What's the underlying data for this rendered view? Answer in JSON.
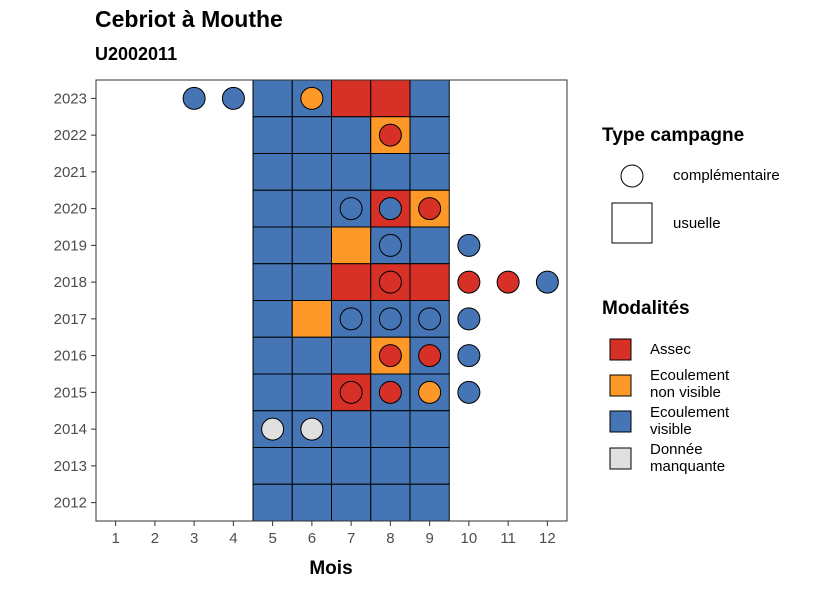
{
  "title": "Cebriot à Mouthe",
  "subtitle": "U2002011",
  "colors": {
    "Assec": "#d73027",
    "Ecoulement non visible": "#fe9929",
    "Ecoulement visible": "#4575b4",
    "Donnée manquante": "#e0e0e0"
  },
  "legend_type": {
    "title": "Type campagne",
    "items": [
      {
        "label": "complémentaire",
        "shape": "circle"
      },
      {
        "label": "usuelle",
        "shape": "square"
      }
    ]
  },
  "legend_modalites": {
    "title": "Modalités",
    "items": [
      {
        "key": "Assec",
        "label": "Assec"
      },
      {
        "key": "Ecoulement non visible",
        "label": "Ecoulement\nnon visible"
      },
      {
        "key": "Ecoulement visible",
        "label": "Ecoulement\nvisible"
      },
      {
        "key": "Donnée manquante",
        "label": "Donnée\nmanquante"
      }
    ]
  },
  "chart_data": {
    "type": "heatmap",
    "title": "Cebriot à Mouthe",
    "subtitle": "U2002011",
    "xlabel": "Mois",
    "ylabel": "",
    "x_ticks": [
      1,
      2,
      3,
      4,
      5,
      6,
      7,
      8,
      9,
      10,
      11,
      12
    ],
    "y_ticks": [
      2012,
      2013,
      2014,
      2015,
      2016,
      2017,
      2018,
      2019,
      2020,
      2021,
      2022,
      2023
    ],
    "xlim": [
      0.5,
      12.5
    ],
    "ylim": [
      2011.5,
      2023.5
    ],
    "usuelle": [
      {
        "year": 2023,
        "values": {
          "5": "Ecoulement visible",
          "6": "Ecoulement visible",
          "7": "Assec",
          "8": "Assec",
          "9": "Ecoulement visible"
        }
      },
      {
        "year": 2022,
        "values": {
          "5": "Ecoulement visible",
          "6": "Ecoulement visible",
          "7": "Ecoulement visible",
          "8": "Ecoulement non visible",
          "9": "Ecoulement visible"
        }
      },
      {
        "year": 2021,
        "values": {
          "5": "Ecoulement visible",
          "6": "Ecoulement visible",
          "7": "Ecoulement visible",
          "8": "Ecoulement visible",
          "9": "Ecoulement visible"
        }
      },
      {
        "year": 2020,
        "values": {
          "5": "Ecoulement visible",
          "6": "Ecoulement visible",
          "7": "Ecoulement visible",
          "8": "Assec",
          "9": "Ecoulement non visible"
        }
      },
      {
        "year": 2019,
        "values": {
          "5": "Ecoulement visible",
          "6": "Ecoulement visible",
          "7": "Ecoulement non visible",
          "8": "Ecoulement visible",
          "9": "Ecoulement visible"
        }
      },
      {
        "year": 2018,
        "values": {
          "5": "Ecoulement visible",
          "6": "Ecoulement visible",
          "7": "Assec",
          "8": "Assec",
          "9": "Assec"
        }
      },
      {
        "year": 2017,
        "values": {
          "5": "Ecoulement visible",
          "6": "Ecoulement non visible",
          "7": "Ecoulement visible",
          "8": "Ecoulement visible",
          "9": "Ecoulement visible"
        }
      },
      {
        "year": 2016,
        "values": {
          "5": "Ecoulement visible",
          "6": "Ecoulement visible",
          "7": "Ecoulement visible",
          "8": "Ecoulement non visible",
          "9": "Ecoulement visible"
        }
      },
      {
        "year": 2015,
        "values": {
          "5": "Ecoulement visible",
          "6": "Ecoulement visible",
          "7": "Assec",
          "8": "Ecoulement visible",
          "9": "Ecoulement visible"
        }
      },
      {
        "year": 2014,
        "values": {
          "5": "Ecoulement visible",
          "6": "Ecoulement visible",
          "7": "Ecoulement visible",
          "8": "Ecoulement visible",
          "9": "Ecoulement visible"
        }
      },
      {
        "year": 2013,
        "values": {
          "5": "Ecoulement visible",
          "6": "Ecoulement visible",
          "7": "Ecoulement visible",
          "8": "Ecoulement visible",
          "9": "Ecoulement visible"
        }
      },
      {
        "year": 2012,
        "values": {
          "5": "Ecoulement visible",
          "6": "Ecoulement visible",
          "7": "Ecoulement visible",
          "8": "Ecoulement visible",
          "9": "Ecoulement visible"
        }
      }
    ],
    "complementaire": [
      {
        "year": 2023,
        "month": 3,
        "value": "Ecoulement visible"
      },
      {
        "year": 2023,
        "month": 4,
        "value": "Ecoulement visible"
      },
      {
        "year": 2023,
        "month": 6,
        "value": "Ecoulement non visible"
      },
      {
        "year": 2022,
        "month": 8,
        "value": "Assec"
      },
      {
        "year": 2020,
        "month": 7,
        "value": "Ecoulement visible"
      },
      {
        "year": 2020,
        "month": 8,
        "value": "Ecoulement visible"
      },
      {
        "year": 2020,
        "month": 9,
        "value": "Assec"
      },
      {
        "year": 2019,
        "month": 8,
        "value": "Ecoulement visible"
      },
      {
        "year": 2019,
        "month": 10,
        "value": "Ecoulement visible"
      },
      {
        "year": 2018,
        "month": 8,
        "value": "Assec"
      },
      {
        "year": 2018,
        "month": 10,
        "value": "Assec"
      },
      {
        "year": 2018,
        "month": 11,
        "value": "Assec"
      },
      {
        "year": 2018,
        "month": 12,
        "value": "Ecoulement visible"
      },
      {
        "year": 2017,
        "month": 7,
        "value": "Ecoulement visible"
      },
      {
        "year": 2017,
        "month": 8,
        "value": "Ecoulement visible"
      },
      {
        "year": 2017,
        "month": 9,
        "value": "Ecoulement visible"
      },
      {
        "year": 2017,
        "month": 10,
        "value": "Ecoulement visible"
      },
      {
        "year": 2016,
        "month": 8,
        "value": "Assec"
      },
      {
        "year": 2016,
        "month": 9,
        "value": "Assec"
      },
      {
        "year": 2016,
        "month": 10,
        "value": "Ecoulement visible"
      },
      {
        "year": 2015,
        "month": 7,
        "value": "Assec"
      },
      {
        "year": 2015,
        "month": 8,
        "value": "Assec"
      },
      {
        "year": 2015,
        "month": 9,
        "value": "Ecoulement non visible"
      },
      {
        "year": 2015,
        "month": 10,
        "value": "Ecoulement visible"
      },
      {
        "year": 2014,
        "month": 5,
        "value": "Donnée manquante"
      },
      {
        "year": 2014,
        "month": 6,
        "value": "Donnée manquante"
      }
    ]
  }
}
